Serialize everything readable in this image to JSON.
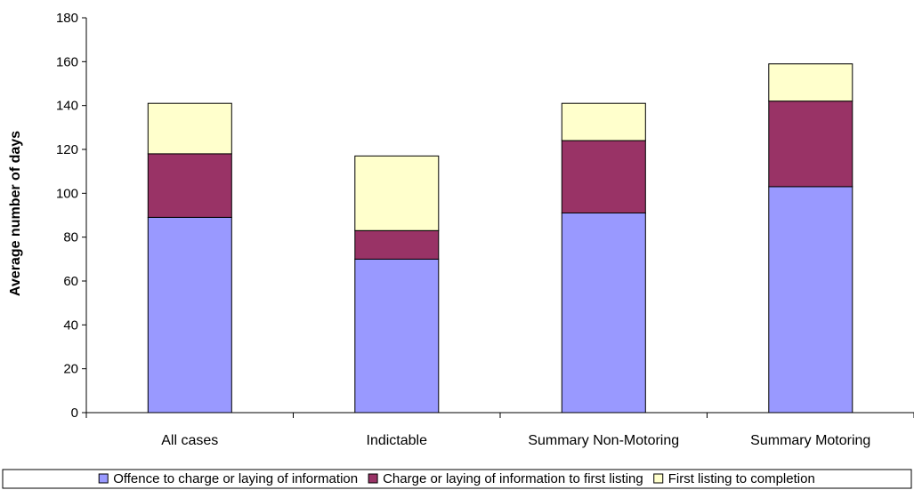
{
  "chart_data": {
    "type": "bar",
    "stacked": true,
    "categories": [
      "All cases",
      "Indictable",
      "Summary Non-Motoring",
      "Summary Motoring"
    ],
    "series": [
      {
        "name": "Offence to charge or laying of information",
        "values": [
          89,
          70,
          91,
          103
        ],
        "color": "#9999ff"
      },
      {
        "name": "Charge or laying of information to first listing",
        "values": [
          29,
          13,
          33,
          39
        ],
        "color": "#993366"
      },
      {
        "name": "First listing to completion",
        "values": [
          23,
          34,
          17,
          17
        ],
        "color": "#ffffcc"
      }
    ],
    "title": "",
    "xlabel": "",
    "ylabel": "Average number of days",
    "ylim": [
      0,
      180
    ],
    "yticks": [
      0,
      20,
      40,
      60,
      80,
      100,
      120,
      140,
      160,
      180
    ],
    "grid": false,
    "legend_position": "bottom"
  }
}
